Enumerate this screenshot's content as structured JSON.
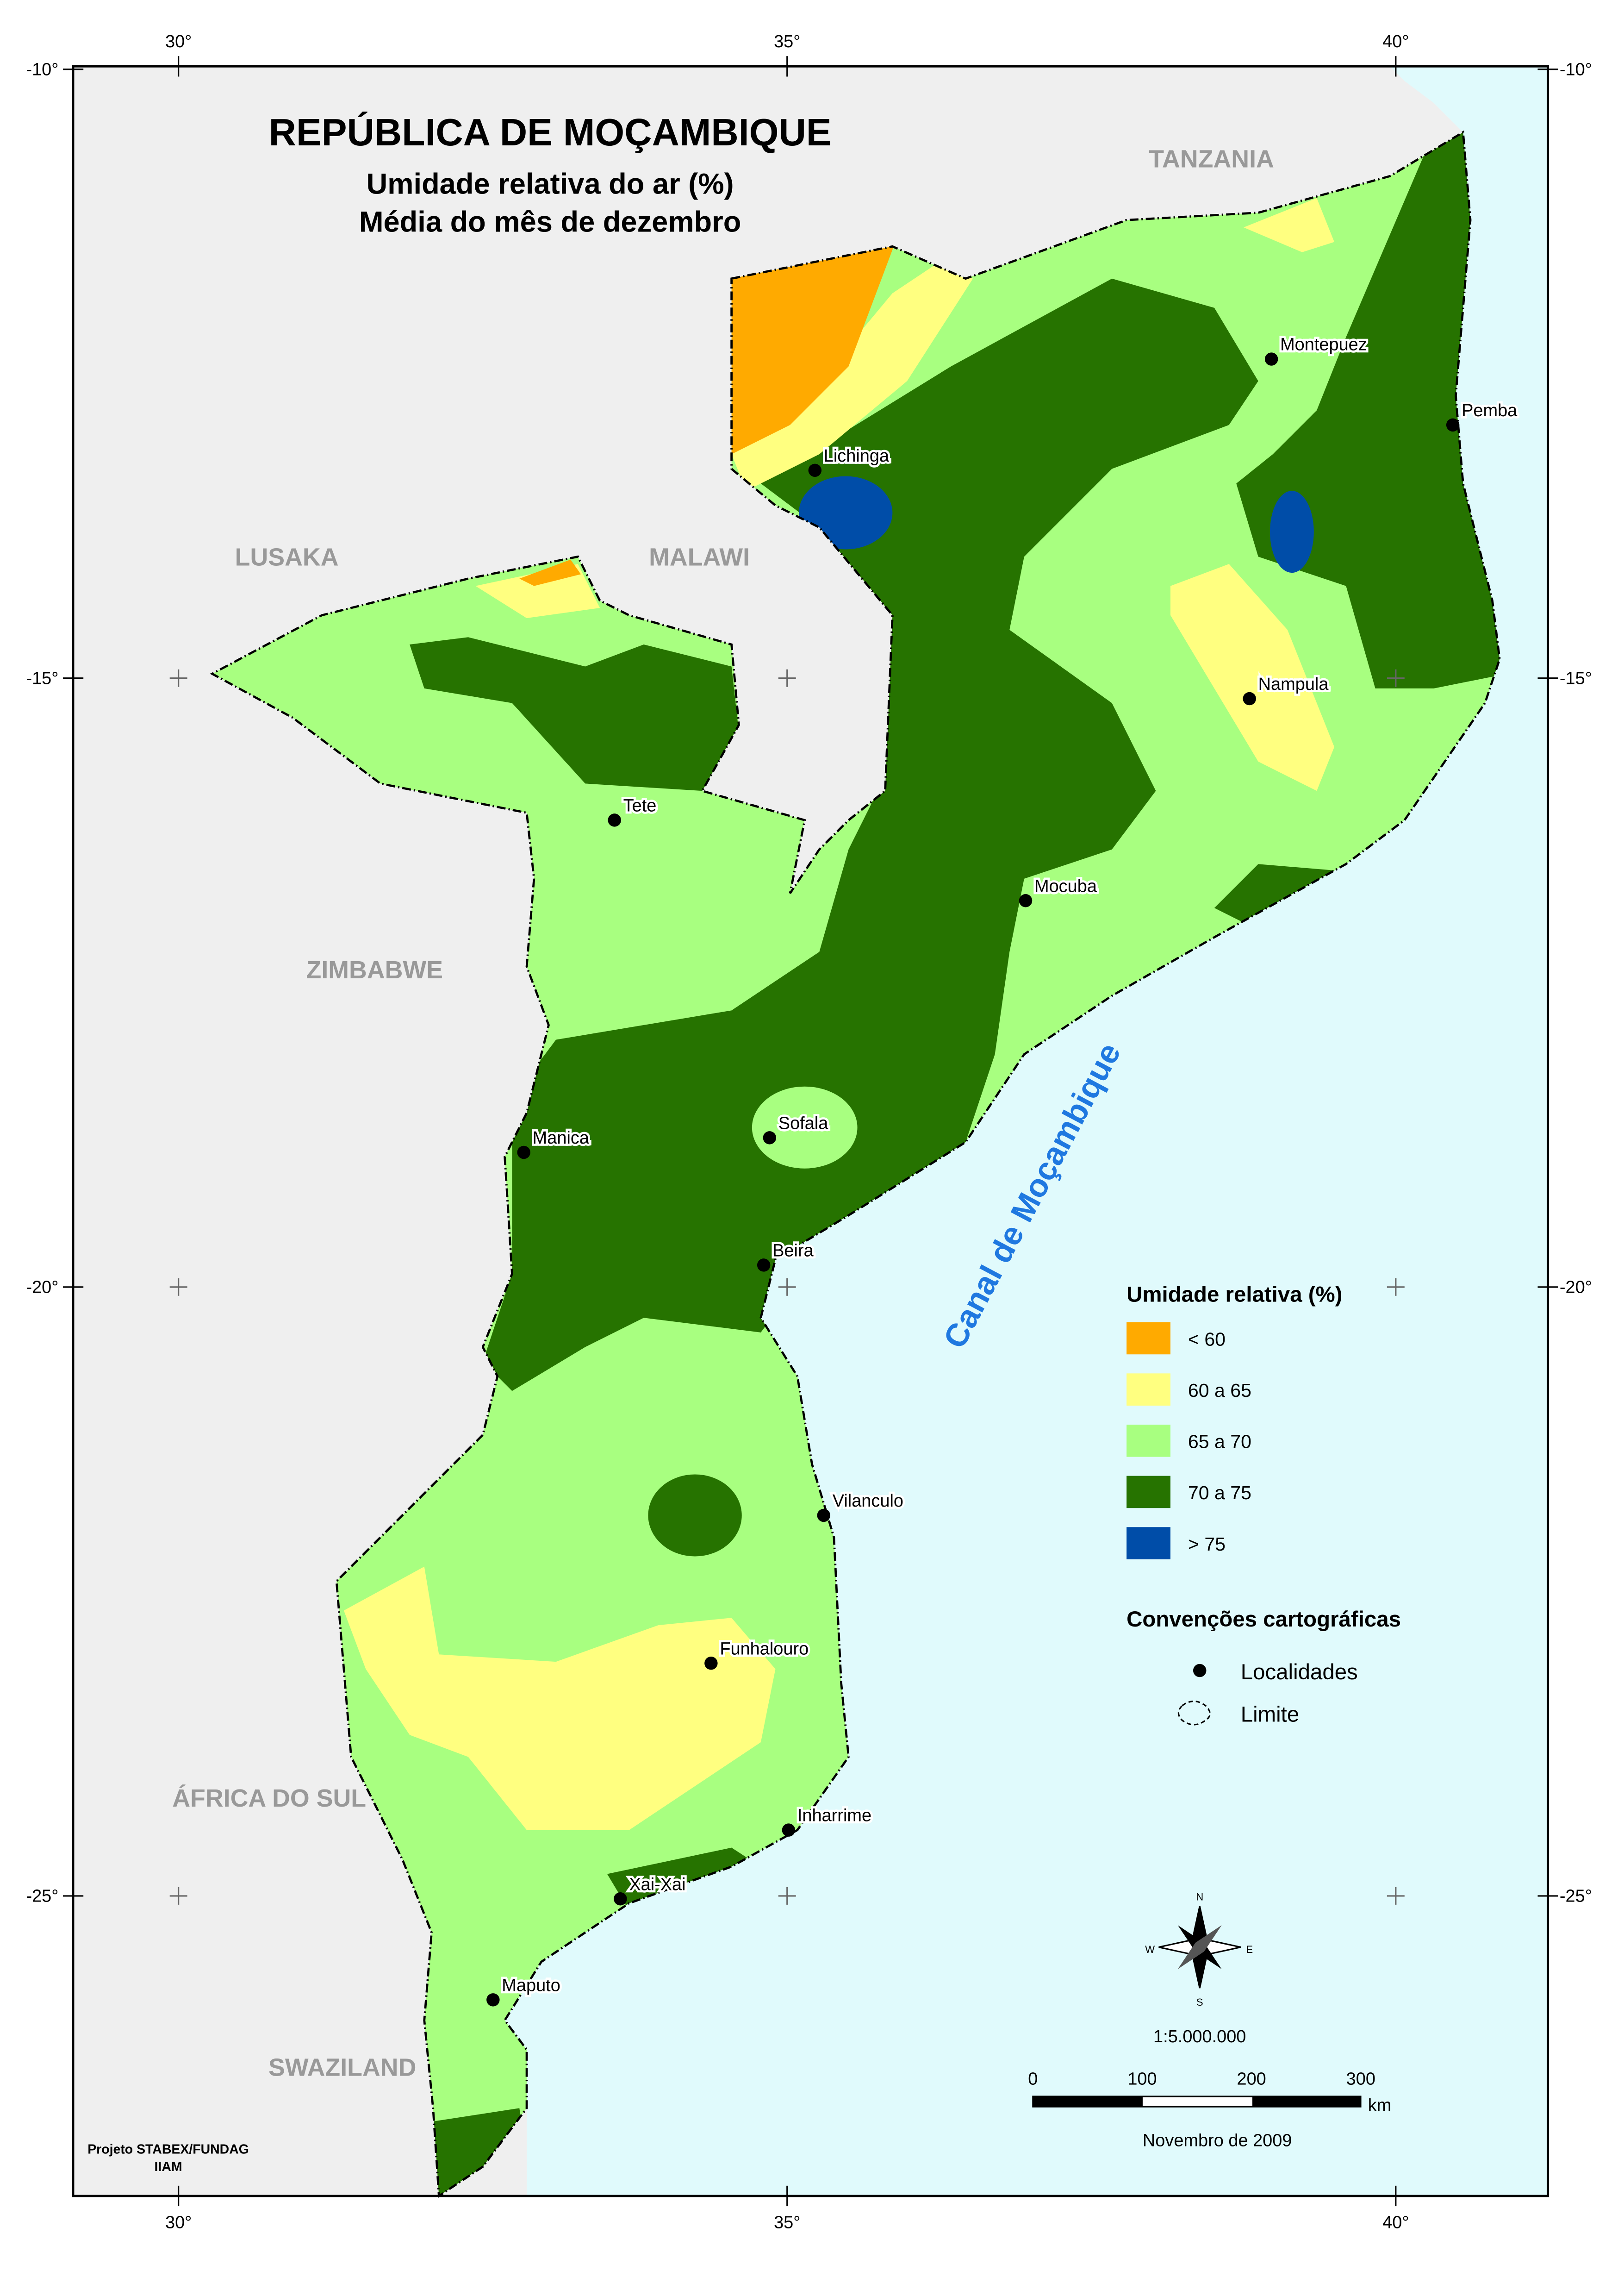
{
  "header": {
    "title": "REPÚBLICA DE MOÇAMBIQUE",
    "subtitle": "Umidade relativa do ar (%)",
    "subtitle2": "Média do mês de dezembro"
  },
  "graticule": {
    "lon": [
      {
        "value": 30,
        "label": "30°"
      },
      {
        "value": 35,
        "label": "35°"
      },
      {
        "value": 40,
        "label": "40°"
      }
    ],
    "lat": [
      {
        "value": -10,
        "label": "-10°"
      },
      {
        "value": -15,
        "label": "-15°"
      },
      {
        "value": -20,
        "label": "-20°"
      },
      {
        "value": -25,
        "label": "-25°"
      }
    ]
  },
  "countries": [
    "TANZANIA",
    "LUSAKA",
    "MALAWI",
    "ZIMBABWE",
    "ÁFRICA DO SUL",
    "SWAZILAND"
  ],
  "sea": "Canal de Moçambique",
  "cities": [
    "Lichinga",
    "Montepuez",
    "Pemba",
    "Nampula",
    "Tete",
    "Mocuba",
    "Sofala",
    "Manica",
    "Beira",
    "Vilanculo",
    "Funhalouro",
    "Inharrime",
    "Xai-Xai",
    "Maputo"
  ],
  "legend": {
    "title": "Umidade relativa (%)",
    "items": [
      {
        "label": "< 60",
        "color": "#ffaa00"
      },
      {
        "label": "60 a 65",
        "color": "#ffff80"
      },
      {
        "label": "65 a 70",
        "color": "#a8ff80"
      },
      {
        "label": "70 a 75",
        "color": "#267300"
      },
      {
        "label": "> 75",
        "color": "#004da8"
      }
    ],
    "conventions_title": "Convenções cartográficas",
    "conventions": [
      "Localidades",
      "Limite"
    ]
  },
  "scale": {
    "ratio": "1:5.000.000",
    "ticks": [
      "0",
      "100",
      "200",
      "300"
    ],
    "unit": "km"
  },
  "date": "Novembro de 2009",
  "credits": [
    "Projeto STABEX/FUNDAG",
    "IIAM"
  ],
  "compass": [
    "N",
    "S",
    "E",
    "W"
  ]
}
